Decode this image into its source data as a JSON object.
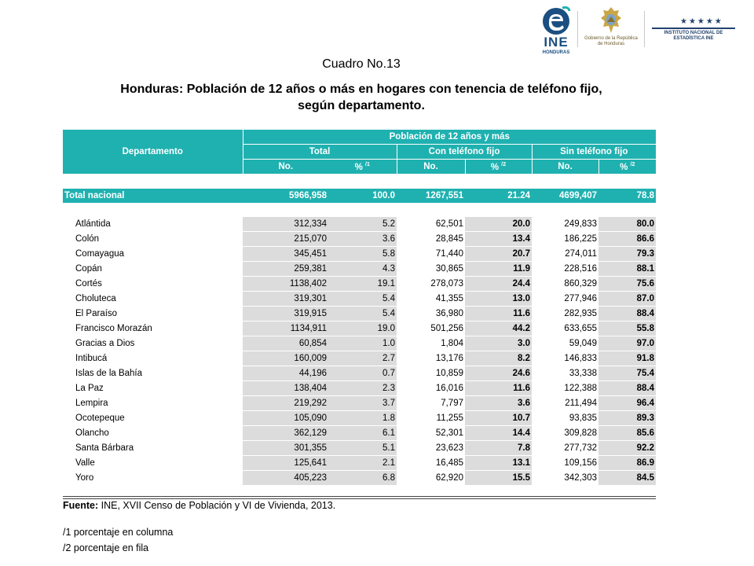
{
  "logos": {
    "ine_text": "INE",
    "ine_sub": "HONDURAS",
    "gob_text": "Gobierno de la República de Honduras",
    "inst_text": "INSTITUTO NACIONAL DE ESTADÍSTICA INE"
  },
  "titles": {
    "cuadro": "Cuadro No.13",
    "line1": "Honduras: Población de 12 años o más en hogares con tenencia de teléfono fijo,",
    "line2": "según departamento."
  },
  "header": {
    "departamento": "Departamento",
    "poblacion": "Población de 12 años y más",
    "total": "Total",
    "con": "Con teléfono fijo",
    "sin": "Sin teléfono fijo",
    "no": "No.",
    "pct": "%",
    "note1": "/1",
    "note2": "/2"
  },
  "total": {
    "label": "Total nacional",
    "no": "5966,958",
    "pct": "100.0",
    "con_no": "1267,551",
    "con_pct": "21.24",
    "sin_no": "4699,407",
    "sin_pct": "78.8"
  },
  "rows": [
    {
      "name": "Atlántida",
      "no": "312,334",
      "pct": "5.2",
      "con_no": "62,501",
      "con_pct": "20.0",
      "sin_no": "249,833",
      "sin_pct": "80.0"
    },
    {
      "name": "Colón",
      "no": "215,070",
      "pct": "3.6",
      "con_no": "28,845",
      "con_pct": "13.4",
      "sin_no": "186,225",
      "sin_pct": "86.6"
    },
    {
      "name": "Comayagua",
      "no": "345,451",
      "pct": "5.8",
      "con_no": "71,440",
      "con_pct": "20.7",
      "sin_no": "274,011",
      "sin_pct": "79.3"
    },
    {
      "name": "Copán",
      "no": "259,381",
      "pct": "4.3",
      "con_no": "30,865",
      "con_pct": "11.9",
      "sin_no": "228,516",
      "sin_pct": "88.1"
    },
    {
      "name": "Cortés",
      "no": "1138,402",
      "pct": "19.1",
      "con_no": "278,073",
      "con_pct": "24.4",
      "sin_no": "860,329",
      "sin_pct": "75.6"
    },
    {
      "name": "Choluteca",
      "no": "319,301",
      "pct": "5.4",
      "con_no": "41,355",
      "con_pct": "13.0",
      "sin_no": "277,946",
      "sin_pct": "87.0"
    },
    {
      "name": "El Paraíso",
      "no": "319,915",
      "pct": "5.4",
      "con_no": "36,980",
      "con_pct": "11.6",
      "sin_no": "282,935",
      "sin_pct": "88.4"
    },
    {
      "name": "Francisco Morazán",
      "no": "1134,911",
      "pct": "19.0",
      "con_no": "501,256",
      "con_pct": "44.2",
      "sin_no": "633,655",
      "sin_pct": "55.8"
    },
    {
      "name": "Gracias a Dios",
      "no": "60,854",
      "pct": "1.0",
      "con_no": "1,804",
      "con_pct": "3.0",
      "sin_no": "59,049",
      "sin_pct": "97.0"
    },
    {
      "name": "Intibucá",
      "no": "160,009",
      "pct": "2.7",
      "con_no": "13,176",
      "con_pct": "8.2",
      "sin_no": "146,833",
      "sin_pct": "91.8"
    },
    {
      "name": "Islas de la Bahía",
      "no": "44,196",
      "pct": "0.7",
      "con_no": "10,859",
      "con_pct": "24.6",
      "sin_no": "33,338",
      "sin_pct": "75.4"
    },
    {
      "name": "La Paz",
      "no": "138,404",
      "pct": "2.3",
      "con_no": "16,016",
      "con_pct": "11.6",
      "sin_no": "122,388",
      "sin_pct": "88.4"
    },
    {
      "name": "Lempira",
      "no": "219,292",
      "pct": "3.7",
      "con_no": "7,797",
      "con_pct": "3.6",
      "sin_no": "211,494",
      "sin_pct": "96.4"
    },
    {
      "name": "Ocotepeque",
      "no": "105,090",
      "pct": "1.8",
      "con_no": "11,255",
      "con_pct": "10.7",
      "sin_no": "93,835",
      "sin_pct": "89.3"
    },
    {
      "name": "Olancho",
      "no": "362,129",
      "pct": "6.1",
      "con_no": "52,301",
      "con_pct": "14.4",
      "sin_no": "309,828",
      "sin_pct": "85.6"
    },
    {
      "name": "Santa Bárbara",
      "no": "301,355",
      "pct": "5.1",
      "con_no": "23,623",
      "con_pct": "7.8",
      "sin_no": "277,732",
      "sin_pct": "92.2"
    },
    {
      "name": "Valle",
      "no": "125,641",
      "pct": "2.1",
      "con_no": "16,485",
      "con_pct": "13.1",
      "sin_no": "109,156",
      "sin_pct": "86.9"
    },
    {
      "name": "Yoro",
      "no": "405,223",
      "pct": "6.8",
      "con_no": "62,920",
      "con_pct": "15.5",
      "sin_no": "342,303",
      "sin_pct": "84.5"
    }
  ],
  "footer": {
    "fuente_label": "Fuente:",
    "fuente_text": " INE, XVII Censo de Población y VI de Vivienda, 2013.",
    "note1": "/1 porcentaje en columna",
    "note2": "/2 porcentaje en fila"
  }
}
